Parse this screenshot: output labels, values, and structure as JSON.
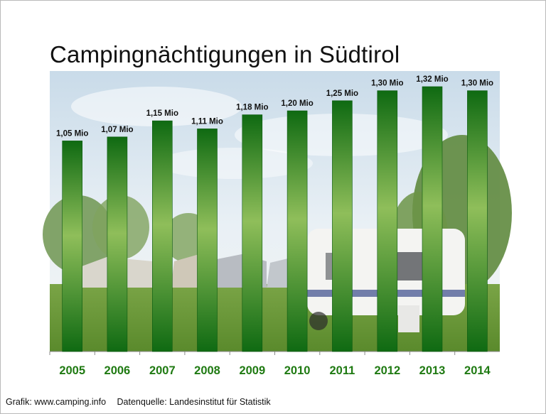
{
  "title": "Campingnächtigungen in Südtirol",
  "footer": {
    "credit": "Grafik: www.camping.info",
    "source": "Datenquelle: Landesinstitut für Statistik"
  },
  "colors": {
    "bar_dark": "#0f6a12",
    "bar_light": "#8fbe5a",
    "year_label": "#1f7a12",
    "sky": "#dce9f3",
    "grass": "#6f9a3a"
  },
  "chart_data": {
    "type": "bar",
    "title": "Campingnächtigungen in Südtirol",
    "categories": [
      "2005",
      "2006",
      "2007",
      "2008",
      "2009",
      "2010",
      "2011",
      "2012",
      "2013",
      "2014"
    ],
    "values": [
      1.05,
      1.07,
      1.15,
      1.11,
      1.18,
      1.2,
      1.25,
      1.3,
      1.32,
      1.3
    ],
    "data_labels": [
      "1,05 Mio",
      "1,07 Mio",
      "1,15 Mio",
      "1,11 Mio",
      "1,18 Mio",
      "1,20 Mio",
      "1,25 Mio",
      "1,30 Mio",
      "1,32 Mio",
      "1,30 Mio"
    ],
    "unit": "Mio",
    "ylim": [
      0,
      1.4
    ],
    "grid": false,
    "legend": "none",
    "background": "photo of campsite with caravans and tents"
  }
}
